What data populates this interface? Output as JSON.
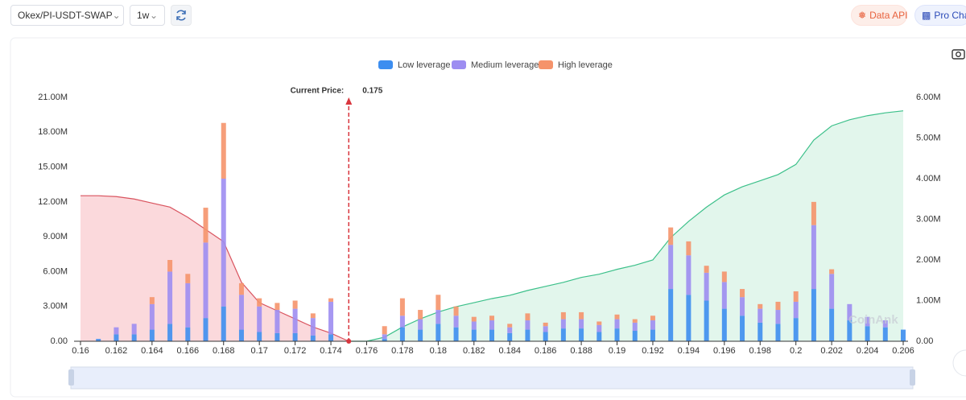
{
  "toolbar": {
    "symbol": "Okex/PI-USDT-SWAP",
    "interval": "1w",
    "data_api": "Data API",
    "pro_chart": "Pro Char"
  },
  "chart_data": {
    "type": "bar",
    "stacked": true,
    "watermark": "CoinAnk",
    "current_price": {
      "label": "Current Price:",
      "value": 0.175,
      "color": "#d9363e"
    },
    "x": [
      0.16,
      0.161,
      0.162,
      0.163,
      0.164,
      0.165,
      0.166,
      0.167,
      0.168,
      0.169,
      0.17,
      0.171,
      0.172,
      0.173,
      0.174,
      0.175,
      0.176,
      0.177,
      0.178,
      0.179,
      0.18,
      0.181,
      0.182,
      0.183,
      0.184,
      0.185,
      0.186,
      0.187,
      0.188,
      0.189,
      0.19,
      0.191,
      0.192,
      0.193,
      0.194,
      0.195,
      0.196,
      0.197,
      0.198,
      0.199,
      0.2,
      0.201,
      0.202,
      0.203,
      0.204,
      0.205,
      0.206
    ],
    "xlim": [
      0.16,
      0.206
    ],
    "xticks": [
      0.16,
      0.162,
      0.164,
      0.166,
      0.168,
      0.17,
      0.172,
      0.174,
      0.176,
      0.178,
      0.18,
      0.182,
      0.184,
      0.186,
      0.188,
      0.19,
      0.192,
      0.194,
      0.196,
      0.198,
      0.2,
      0.202,
      0.204,
      0.206
    ],
    "ylim": [
      0,
      21000000
    ],
    "yticks": [
      {
        "value": 0,
        "label": "0.00"
      },
      {
        "value": 3000000,
        "label": "3.00M"
      },
      {
        "value": 6000000,
        "label": "6.00M"
      },
      {
        "value": 9000000,
        "label": "9.00M"
      },
      {
        "value": 12000000,
        "label": "12.00M"
      },
      {
        "value": 15000000,
        "label": "15.00M"
      },
      {
        "value": 18000000,
        "label": "18.00M"
      },
      {
        "value": 21000000,
        "label": "21.00M"
      }
    ],
    "y2lim": [
      0,
      6000000
    ],
    "y2ticks": [
      {
        "value": 0,
        "label": "0.00"
      },
      {
        "value": 1000000,
        "label": "1.00M"
      },
      {
        "value": 2000000,
        "label": "2.00M"
      },
      {
        "value": 3000000,
        "label": "3.00M"
      },
      {
        "value": 4000000,
        "label": "4.00M"
      },
      {
        "value": 5000000,
        "label": "5.00M"
      },
      {
        "value": 6000000,
        "label": "6.00M"
      }
    ],
    "grid": false,
    "legend": "top",
    "series": [
      {
        "name": "Low leverage",
        "color": "#3d8ef0",
        "values": [
          null,
          200000,
          600000,
          600000,
          1000000,
          1500000,
          1200000,
          2000000,
          3000000,
          1000000,
          800000,
          700000,
          700000,
          500000,
          600000,
          null,
          null,
          200000,
          1200000,
          1000000,
          1500000,
          1200000,
          1000000,
          1000000,
          700000,
          1000000,
          800000,
          1100000,
          1100000,
          800000,
          1100000,
          900000,
          1000000,
          4500000,
          4000000,
          3500000,
          2800000,
          2200000,
          1600000,
          1500000,
          2000000,
          4500000,
          2800000,
          1800000,
          1300000,
          1200000,
          1000000
        ]
      },
      {
        "name": "Medium leverage",
        "color": "#9d8df1",
        "values": [
          null,
          0,
          600000,
          900000,
          2200000,
          4500000,
          3800000,
          6500000,
          11000000,
          3000000,
          2200000,
          2000000,
          2100000,
          1500000,
          2800000,
          null,
          null,
          400000,
          1000000,
          900000,
          1200000,
          1000000,
          700000,
          800000,
          500000,
          800000,
          500000,
          800000,
          800000,
          600000,
          800000,
          700000,
          800000,
          3800000,
          3400000,
          2400000,
          2300000,
          1600000,
          1200000,
          1200000,
          1400000,
          5500000,
          3000000,
          1400000,
          800000,
          600000,
          0
        ]
      },
      {
        "name": "High leverage",
        "color": "#f5936b",
        "values": [
          null,
          0,
          0,
          0,
          600000,
          1000000,
          800000,
          3000000,
          4800000,
          1000000,
          700000,
          600000,
          700000,
          400000,
          300000,
          null,
          null,
          700000,
          1500000,
          800000,
          1300000,
          800000,
          400000,
          400000,
          300000,
          600000,
          300000,
          600000,
          600000,
          300000,
          400000,
          300000,
          400000,
          1500000,
          1200000,
          600000,
          900000,
          700000,
          400000,
          700000,
          900000,
          2000000,
          400000,
          0,
          0,
          0,
          0
        ]
      }
    ],
    "lines": [
      {
        "axis": "y2",
        "color": "#d9545f",
        "fill": "rgba(240,120,130,0.28)",
        "values": [
          3580000,
          3580000,
          3560000,
          3500000,
          3400000,
          3300000,
          3050000,
          2750000,
          2450000,
          1450000,
          950000,
          750000,
          550000,
          350000,
          200000,
          0,
          null,
          null,
          null,
          null,
          null,
          null,
          null,
          null,
          null,
          null,
          null,
          null,
          null,
          null,
          null,
          null,
          null,
          null,
          null,
          null,
          null,
          null,
          null,
          null,
          null,
          null,
          null,
          null,
          null,
          null,
          null
        ]
      },
      {
        "axis": "y2",
        "color": "#3cc08a",
        "fill": "rgba(110,210,160,0.2)",
        "values": [
          null,
          null,
          null,
          null,
          null,
          null,
          null,
          null,
          null,
          null,
          null,
          null,
          null,
          null,
          null,
          0,
          0,
          100000,
          350000,
          550000,
          720000,
          850000,
          950000,
          1050000,
          1130000,
          1250000,
          1350000,
          1450000,
          1570000,
          1650000,
          1770000,
          1870000,
          2000000,
          2550000,
          2950000,
          3300000,
          3600000,
          3800000,
          3950000,
          4100000,
          4350000,
          4950000,
          5300000,
          5450000,
          5550000,
          5620000,
          5670000
        ]
      }
    ]
  }
}
